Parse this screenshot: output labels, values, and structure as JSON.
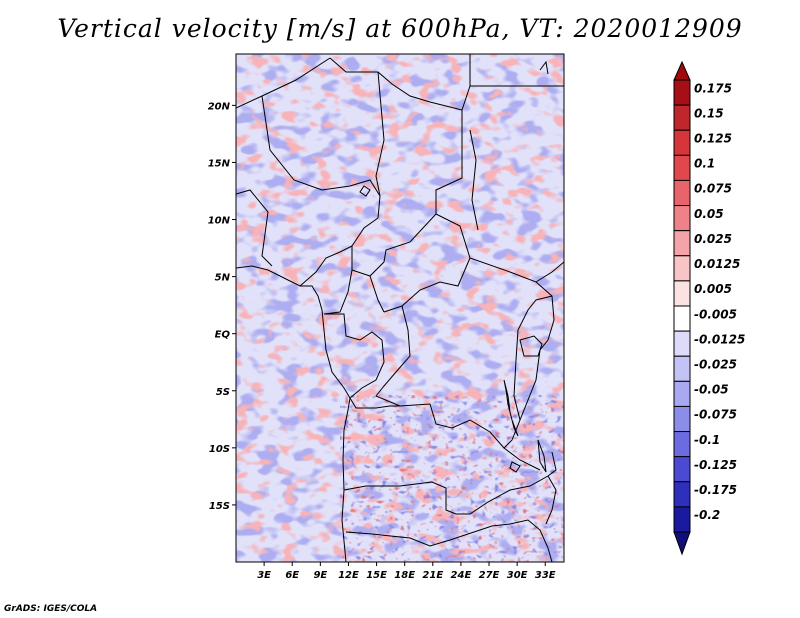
{
  "title": "Vertical velocity [m/s] at 600hPa, VT: 2020012909",
  "credit": "GrADS: IGES/COLA",
  "map": {
    "lat_labels": [
      {
        "text": "20N",
        "lat": 20
      },
      {
        "text": "15N",
        "lat": 15
      },
      {
        "text": "10N",
        "lat": 10
      },
      {
        "text": "5N",
        "lat": 5
      },
      {
        "text": "EQ",
        "lat": 0
      },
      {
        "text": "5S",
        "lat": -5
      },
      {
        "text": "10S",
        "lat": -10
      },
      {
        "text": "15S",
        "lat": -15
      }
    ],
    "lon_labels": [
      {
        "text": "3E",
        "lon": 3
      },
      {
        "text": "6E",
        "lon": 6
      },
      {
        "text": "9E",
        "lon": 9
      },
      {
        "text": "12E",
        "lon": 12
      },
      {
        "text": "15E",
        "lon": 15
      },
      {
        "text": "18E",
        "lon": 18
      },
      {
        "text": "21E",
        "lon": 21
      },
      {
        "text": "24E",
        "lon": 24
      },
      {
        "text": "27E",
        "lon": 27
      },
      {
        "text": "30E",
        "lon": 30
      },
      {
        "text": "33E",
        "lon": 33
      }
    ],
    "lon_range": [
      0,
      35
    ],
    "lat_range": [
      -20,
      24.5
    ]
  },
  "colorbar": {
    "labels": [
      "0.175",
      "0.15",
      "0.125",
      "0.1",
      "0.075",
      "0.05",
      "0.025",
      "0.0125",
      "0.005",
      "-0.005",
      "-0.0125",
      "-0.025",
      "-0.05",
      "-0.075",
      "-0.1",
      "-0.125",
      "-0.175",
      "-0.2"
    ],
    "colors": [
      "#a50f15",
      "#c0272d",
      "#d6363a",
      "#e0484c",
      "#e8636a",
      "#ef8288",
      "#f4a3a8",
      "#f8c4c6",
      "#fbe2e3",
      "#ffffff",
      "#dcdcfa",
      "#c3c3f6",
      "#a9a9f1",
      "#8c8ce9",
      "#6c6ce0",
      "#4a4ad2",
      "#2f2fbe",
      "#1a1aa0"
    ],
    "top_color": "#a00a0a",
    "bottom_color": "#120e7a"
  }
}
